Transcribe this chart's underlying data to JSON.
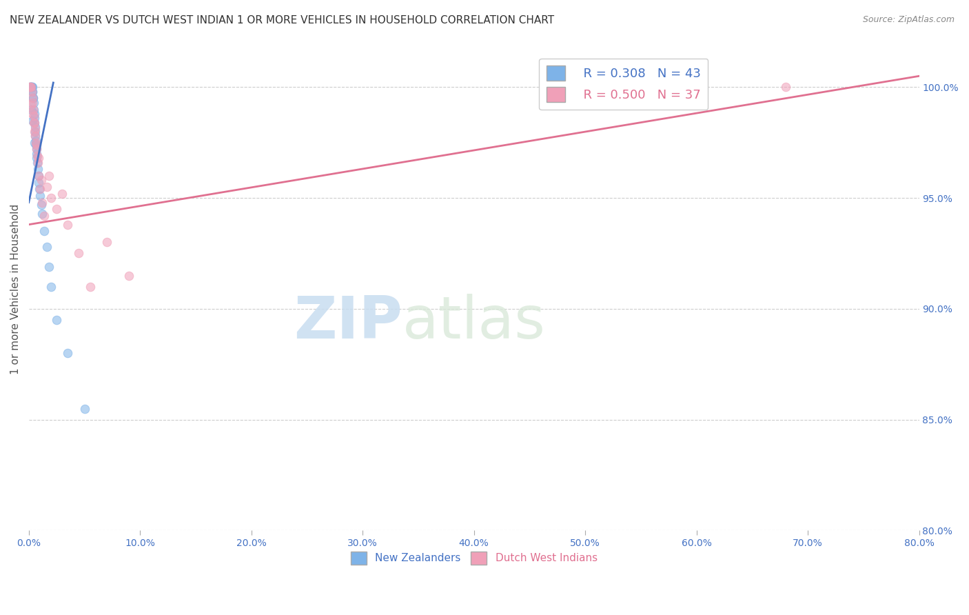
{
  "title": "NEW ZEALANDER VS DUTCH WEST INDIAN 1 OR MORE VEHICLES IN HOUSEHOLD CORRELATION CHART",
  "source": "Source: ZipAtlas.com",
  "ylabel": "1 or more Vehicles in Household",
  "xlim": [
    0.0,
    80.0
  ],
  "ylim": [
    80.0,
    101.8
  ],
  "x_ticks": [
    0.0,
    10.0,
    20.0,
    30.0,
    40.0,
    50.0,
    60.0,
    70.0,
    80.0
  ],
  "y_ticks": [
    80.0,
    85.0,
    90.0,
    95.0,
    100.0
  ],
  "nz_color": "#7eb3e8",
  "dwi_color": "#f0a0b8",
  "nz_line_color": "#4472c4",
  "dwi_line_color": "#e07090",
  "legend_nz_R": "R = 0.308",
  "legend_nz_N": "N = 43",
  "legend_dwi_R": "R = 0.500",
  "legend_dwi_N": "N = 37",
  "nz_line": [
    [
      0.0,
      94.8
    ],
    [
      2.2,
      100.2
    ]
  ],
  "dwi_line": [
    [
      0.0,
      93.8
    ],
    [
      80.0,
      100.5
    ]
  ],
  "nz_x": [
    0.1,
    0.15,
    0.18,
    0.22,
    0.25,
    0.28,
    0.3,
    0.32,
    0.35,
    0.38,
    0.4,
    0.42,
    0.45,
    0.48,
    0.5,
    0.52,
    0.55,
    0.58,
    0.6,
    0.62,
    0.65,
    0.68,
    0.7,
    0.72,
    0.75,
    0.8,
    0.85,
    0.9,
    0.95,
    1.0,
    1.1,
    1.2,
    1.4,
    1.6,
    1.8,
    2.0,
    2.5,
    3.5,
    5.0,
    0.12,
    0.2,
    0.3,
    0.5
  ],
  "nz_y": [
    100.0,
    100.0,
    100.0,
    100.0,
    100.0,
    100.0,
    100.0,
    99.8,
    99.8,
    99.5,
    99.5,
    99.3,
    99.0,
    98.8,
    98.6,
    98.4,
    98.2,
    98.0,
    97.8,
    97.6,
    97.4,
    97.2,
    97.0,
    96.8,
    96.6,
    96.3,
    96.0,
    95.7,
    95.4,
    95.1,
    94.7,
    94.3,
    93.5,
    92.8,
    91.9,
    91.0,
    89.5,
    88.0,
    85.5,
    100.0,
    99.0,
    98.5,
    97.5
  ],
  "nz_sizes": [
    100,
    100,
    80,
    80,
    80,
    80,
    80,
    80,
    80,
    80,
    80,
    80,
    80,
    80,
    80,
    80,
    80,
    80,
    80,
    80,
    80,
    80,
    80,
    80,
    80,
    80,
    80,
    80,
    80,
    80,
    80,
    80,
    80,
    80,
    80,
    80,
    80,
    80,
    80,
    80,
    80,
    80,
    80
  ],
  "dwi_x": [
    0.1,
    0.15,
    0.2,
    0.25,
    0.3,
    0.35,
    0.4,
    0.45,
    0.5,
    0.55,
    0.6,
    0.65,
    0.7,
    0.75,
    0.8,
    0.9,
    1.0,
    1.2,
    1.4,
    1.6,
    1.8,
    2.0,
    2.5,
    3.0,
    3.5,
    4.5,
    5.5,
    7.0,
    9.0,
    68.0,
    0.22,
    0.32,
    0.42,
    0.52,
    0.72,
    0.85,
    1.1
  ],
  "dwi_y": [
    100.0,
    100.0,
    100.0,
    99.8,
    99.5,
    99.3,
    99.0,
    98.7,
    98.4,
    98.1,
    97.8,
    97.5,
    97.2,
    96.9,
    96.6,
    96.0,
    95.4,
    94.8,
    94.2,
    95.5,
    96.0,
    95.0,
    94.5,
    95.2,
    93.8,
    92.5,
    91.0,
    93.0,
    91.5,
    100.0,
    99.2,
    98.8,
    98.4,
    98.0,
    97.4,
    96.8,
    95.8
  ],
  "dwi_sizes": [
    300,
    80,
    80,
    80,
    80,
    80,
    80,
    80,
    80,
    80,
    80,
    80,
    80,
    80,
    80,
    80,
    80,
    80,
    80,
    80,
    80,
    80,
    80,
    80,
    80,
    80,
    80,
    80,
    80,
    80,
    80,
    80,
    80,
    80,
    80,
    80,
    80
  ],
  "watermark_zip": "ZIP",
  "watermark_atlas": "atlas",
  "background_color": "#ffffff",
  "grid_color": "#cccccc",
  "title_color": "#333333",
  "axis_label_color": "#555555",
  "right_axis_color": "#4472c4",
  "legend_fontsize": 13,
  "title_fontsize": 11,
  "marker_size": 9
}
